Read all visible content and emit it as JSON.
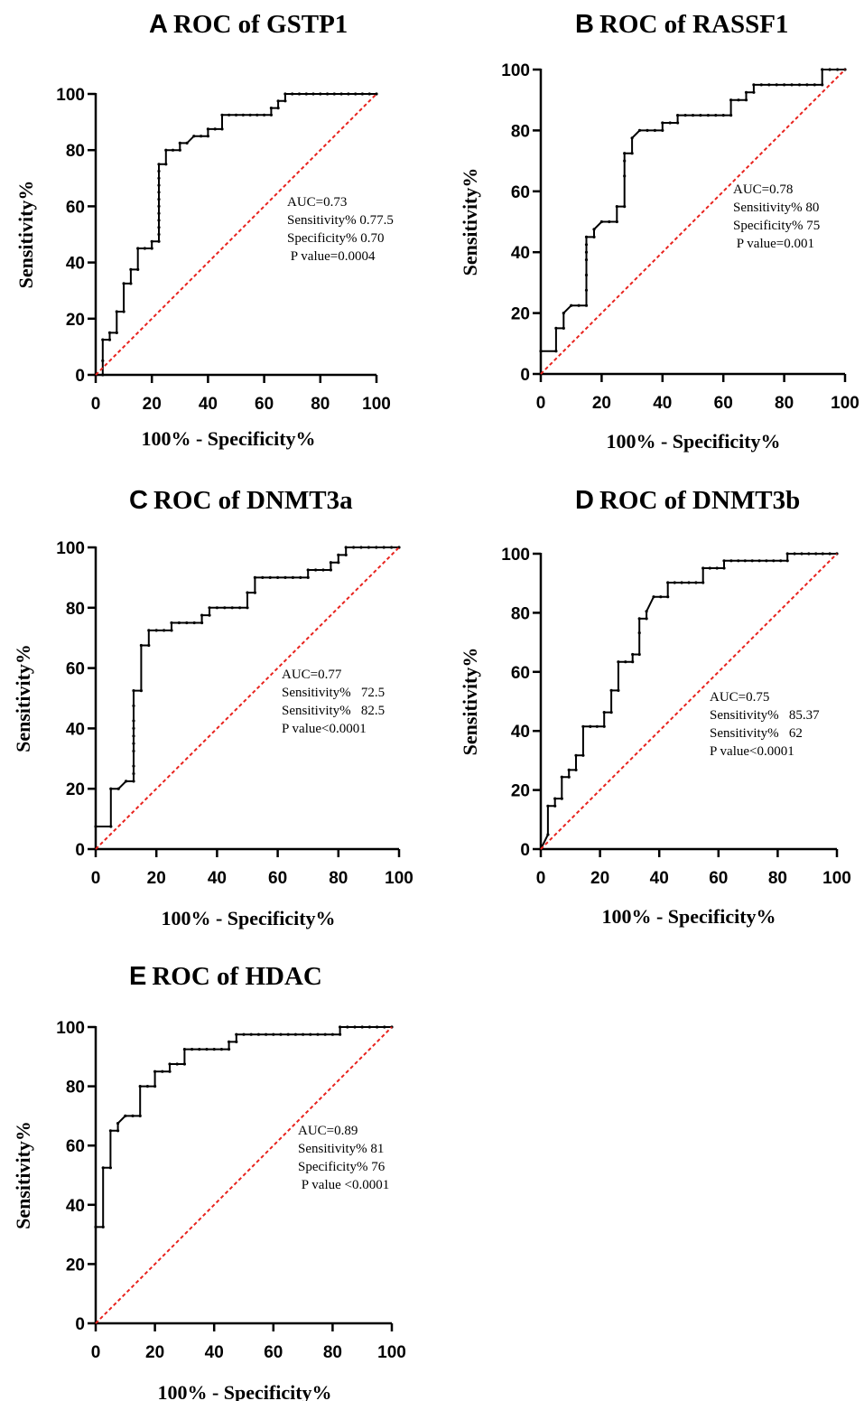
{
  "chart_data": [
    {
      "type": "line",
      "letter": "A",
      "title": "ROC of GSTP1",
      "xlabel": "100% - Specificity%",
      "ylabel": "Sensitivity%",
      "xlim": [
        0,
        100
      ],
      "ylim": [
        0,
        100
      ],
      "xticks": [
        0,
        20,
        40,
        60,
        80,
        100
      ],
      "yticks": [
        0,
        20,
        40,
        60,
        80,
        100
      ],
      "annotations": [
        "AUC=0.73",
        "Sensitivity% 0.77.5",
        "Specificity% 0.70",
        " P value=0.0004"
      ],
      "series": [
        {
          "role": "roc",
          "color": "#000000",
          "x": [
            0,
            2.5,
            2.5,
            2.5,
            5,
            5,
            7.5,
            7.5,
            10,
            10,
            12.5,
            12.5,
            15,
            15,
            17.5,
            20,
            20,
            22.5,
            22.5,
            22.5,
            22.5,
            22.5,
            22.5,
            22.5,
            22.5,
            22.5,
            22.5,
            22.5,
            22.5,
            25,
            25,
            27.5,
            30,
            30,
            32.5,
            35,
            37.5,
            40,
            40,
            42.5,
            45,
            45,
            47.5,
            50,
            52.5,
            55,
            57.5,
            60,
            62.5,
            62.5,
            65,
            65,
            67.5,
            67.5,
            70,
            72.5,
            75,
            77.5,
            80,
            82.5,
            85,
            87.5,
            90,
            92.5,
            95,
            97.5,
            100
          ],
          "y": [
            0,
            0,
            5,
            12.5,
            12.5,
            15,
            15,
            22.5,
            22.5,
            32.5,
            32.5,
            37.5,
            37.5,
            45,
            45,
            45,
            47.5,
            47.5,
            50,
            52.5,
            55,
            57.5,
            60,
            62.5,
            65,
            67.5,
            70,
            72.5,
            75,
            75,
            80,
            80,
            80,
            82.5,
            82.5,
            85,
            85,
            85,
            87.5,
            87.5,
            87.5,
            92.5,
            92.5,
            92.5,
            92.5,
            92.5,
            92.5,
            92.5,
            92.5,
            95,
            95,
            97.5,
            97.5,
            100,
            100,
            100,
            100,
            100,
            100,
            100,
            100,
            100,
            100,
            100,
            100,
            100,
            100
          ]
        },
        {
          "role": "reference",
          "color": "#e8231e",
          "x": [
            0,
            100
          ],
          "y": [
            0,
            100
          ]
        }
      ]
    },
    {
      "type": "line",
      "letter": "B",
      "title": "ROC of RASSF1",
      "xlabel": "100% - Specificity%",
      "ylabel": "Sensitivity%",
      "xlim": [
        0,
        100
      ],
      "ylim": [
        0,
        100
      ],
      "xticks": [
        0,
        20,
        40,
        60,
        80,
        100
      ],
      "yticks": [
        0,
        20,
        40,
        60,
        80,
        100
      ],
      "annotations": [
        "AUC=0.78",
        "Sensitivity% 80",
        "Specificity% 75",
        " P value=0.001"
      ],
      "series": [
        {
          "role": "roc",
          "color": "#000000",
          "x": [
            0,
            0,
            5,
            5,
            7.5,
            7.5,
            10,
            12.5,
            15,
            15,
            15,
            15,
            15,
            15,
            15,
            17.5,
            17.5,
            20,
            22.5,
            25,
            25,
            27.5,
            27.5,
            27.5,
            27.5,
            30,
            30,
            32.5,
            35,
            37.5,
            40,
            40,
            42.5,
            45,
            45,
            47.5,
            50,
            52.5,
            55,
            57.5,
            60,
            62.5,
            62.5,
            65,
            67.5,
            67.5,
            70,
            70,
            72.5,
            75,
            77.5,
            80,
            82.5,
            85,
            87.5,
            90,
            92.5,
            92.5,
            95,
            97.5,
            100
          ],
          "y": [
            0,
            7.5,
            7.5,
            15,
            15,
            20,
            22.5,
            22.5,
            22.5,
            27.5,
            32.5,
            37.5,
            40,
            42.5,
            45,
            45,
            47.5,
            50,
            50,
            50,
            55,
            55,
            65,
            70,
            72.5,
            72.5,
            77.5,
            80,
            80,
            80,
            80,
            82.5,
            82.5,
            82.5,
            85,
            85,
            85,
            85,
            85,
            85,
            85,
            85,
            90,
            90,
            90,
            92.5,
            92.5,
            95,
            95,
            95,
            95,
            95,
            95,
            95,
            95,
            95,
            95,
            100,
            100,
            100,
            100
          ]
        },
        {
          "role": "reference",
          "color": "#e8231e",
          "x": [
            0,
            100
          ],
          "y": [
            0,
            100
          ]
        }
      ]
    },
    {
      "type": "line",
      "letter": "C",
      "title": "ROC of DNMT3a",
      "xlabel": "100% - Specificity%",
      "ylabel": "Sensitivity%",
      "xlim": [
        0,
        100
      ],
      "ylim": [
        0,
        100
      ],
      "xticks": [
        0,
        20,
        40,
        60,
        80,
        100
      ],
      "yticks": [
        0,
        20,
        40,
        60,
        80,
        100
      ],
      "annotations": [
        "AUC=0.77",
        "Sensitivity%   72.5",
        "Sensitivity%   82.5",
        "P value<0.0001"
      ],
      "series": [
        {
          "role": "roc",
          "color": "#000000",
          "x": [
            0,
            0,
            5,
            5,
            7.5,
            10,
            12.5,
            12.5,
            12.5,
            12.5,
            12.5,
            12.5,
            12.5,
            12.5,
            12.5,
            12.5,
            15,
            15,
            17.5,
            17.5,
            20,
            22.5,
            25,
            25,
            27.5,
            30,
            32.5,
            35,
            35,
            37.5,
            37.5,
            40,
            42.5,
            45,
            47.5,
            50,
            50,
            52.5,
            52.5,
            55,
            57.5,
            60,
            62.5,
            65,
            67.5,
            70,
            70,
            72.5,
            75,
            77.5,
            77.5,
            80,
            80,
            82.5,
            82.5,
            85,
            87.5,
            90,
            92.5,
            95,
            97.5,
            100
          ],
          "y": [
            0,
            7.5,
            7.5,
            20,
            20,
            22.5,
            22.5,
            25,
            27.5,
            32.5,
            35,
            37.5,
            40,
            42.5,
            47.5,
            52.5,
            52.5,
            67.5,
            67.5,
            72.5,
            72.5,
            72.5,
            72.5,
            75,
            75,
            75,
            75,
            75,
            77.5,
            77.5,
            80,
            80,
            80,
            80,
            80,
            80,
            85,
            85,
            90,
            90,
            90,
            90,
            90,
            90,
            90,
            90,
            92.5,
            92.5,
            92.5,
            92.5,
            95,
            95,
            97.5,
            97.5,
            100,
            100,
            100,
            100,
            100,
            100,
            100,
            100
          ]
        },
        {
          "role": "reference",
          "color": "#e8231e",
          "x": [
            0,
            100
          ],
          "y": [
            0,
            100
          ]
        }
      ]
    },
    {
      "type": "line",
      "letter": "D",
      "title": "ROC of DNMT3b",
      "xlabel": "100% - Specificity%",
      "ylabel": "Sensitivity%",
      "xlim": [
        0,
        100
      ],
      "ylim": [
        0,
        100
      ],
      "xticks": [
        0,
        20,
        40,
        60,
        80,
        100
      ],
      "yticks": [
        0,
        20,
        40,
        60,
        80,
        100
      ],
      "annotations": [
        "AUC=0.75",
        "Sensitivity%   85.37",
        "Sensitivity%   62",
        "P value<0.0001"
      ],
      "series": [
        {
          "role": "roc",
          "color": "#000000",
          "x": [
            0,
            2.4,
            2.4,
            4.8,
            4.8,
            7.1,
            7.1,
            9.5,
            9.5,
            11.9,
            11.9,
            14.3,
            14.3,
            16.7,
            16.7,
            19,
            21.4,
            21.4,
            23.8,
            23.8,
            26.2,
            26.2,
            28.6,
            31,
            31,
            33.3,
            33.3,
            33.3,
            35.7,
            35.7,
            38.1,
            40.5,
            42.9,
            42.9,
            45.2,
            47.6,
            50,
            52.4,
            54.8,
            54.8,
            57.1,
            59.5,
            61.9,
            61.9,
            64.3,
            66.7,
            69,
            71.4,
            73.8,
            76.2,
            78.6,
            81,
            83.3,
            83.3,
            85.7,
            88.1,
            90.5,
            92.9,
            95.2,
            97.6,
            100
          ],
          "y": [
            0,
            4.9,
            14.6,
            14.6,
            17.1,
            17.1,
            24.4,
            24.4,
            26.8,
            26.8,
            31.7,
            31.7,
            41.5,
            41.5,
            41.5,
            41.5,
            41.5,
            46.3,
            46.3,
            53.7,
            53.7,
            63.4,
            63.4,
            63.4,
            65.9,
            65.9,
            73.2,
            78,
            78,
            80.5,
            85.4,
            85.4,
            85.4,
            90.2,
            90.2,
            90.2,
            90.2,
            90.2,
            90.2,
            95.1,
            95.1,
            95.1,
            95.1,
            97.6,
            97.6,
            97.6,
            97.6,
            97.6,
            97.6,
            97.6,
            97.6,
            97.6,
            97.6,
            100,
            100,
            100,
            100,
            100,
            100,
            100,
            100
          ]
        },
        {
          "role": "reference",
          "color": "#e8231e",
          "x": [
            0,
            100
          ],
          "y": [
            0,
            100
          ]
        }
      ]
    },
    {
      "type": "line",
      "letter": "E",
      "title": "ROC of HDAC",
      "xlabel": "100% - Specificity%",
      "ylabel": "Sensitivity%",
      "xlim": [
        0,
        100
      ],
      "ylim": [
        0,
        100
      ],
      "xticks": [
        0,
        20,
        40,
        60,
        80,
        100
      ],
      "yticks": [
        0,
        20,
        40,
        60,
        80,
        100
      ],
      "annotations": [
        "AUC=0.89",
        "Sensitivity% 81",
        "Specificity% 76",
        " P value <0.0001"
      ],
      "series": [
        {
          "role": "roc",
          "color": "#000000",
          "x": [
            0,
            0,
            2.5,
            2.5,
            5,
            5,
            7.5,
            7.5,
            10,
            12.5,
            15,
            15,
            17.5,
            20,
            20,
            22.5,
            25,
            25,
            27.5,
            30,
            30,
            32.5,
            35,
            37.5,
            40,
            42.5,
            45,
            45,
            47.5,
            47.5,
            50,
            52.5,
            55,
            57.5,
            60,
            62.5,
            65,
            67.5,
            70,
            72.5,
            75,
            77.5,
            80,
            82.5,
            82.5,
            85,
            87.5,
            90,
            92.5,
            95,
            97.5,
            100
          ],
          "y": [
            0,
            32.5,
            32.5,
            52.5,
            52.5,
            65,
            65,
            67.5,
            70,
            70,
            70,
            80,
            80,
            80,
            85,
            85,
            85,
            87.5,
            87.5,
            87.5,
            92.5,
            92.5,
            92.5,
            92.5,
            92.5,
            92.5,
            92.5,
            95,
            95,
            97.5,
            97.5,
            97.5,
            97.5,
            97.5,
            97.5,
            97.5,
            97.5,
            97.5,
            97.5,
            97.5,
            97.5,
            97.5,
            97.5,
            97.5,
            100,
            100,
            100,
            100,
            100,
            100,
            100,
            100
          ]
        },
        {
          "role": "reference",
          "color": "#e8231e",
          "x": [
            0,
            100
          ],
          "y": [
            0,
            100
          ]
        }
      ]
    }
  ]
}
